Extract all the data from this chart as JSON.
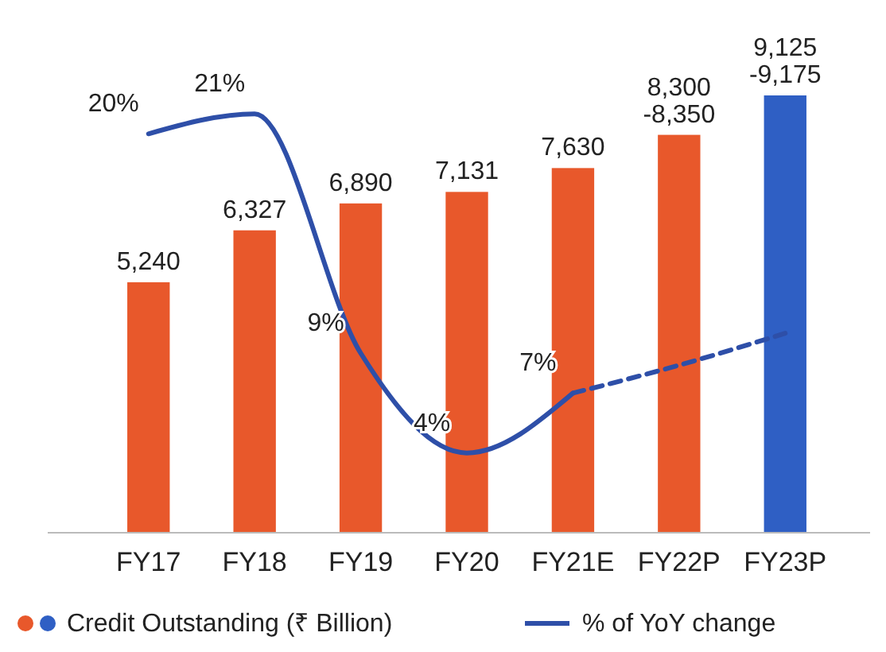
{
  "chart_data": {
    "type": "bar",
    "categories": [
      "FY17",
      "FY18",
      "FY19",
      "FY20",
      "FY21E",
      "FY22P",
      "FY23P"
    ],
    "series": [
      {
        "name": "Credit Outstanding (₹ Billion)",
        "colors": [
          "#e8582b",
          "#e8582b",
          "#e8582b",
          "#e8582b",
          "#e8582b",
          "#e8582b",
          "#2f5fc4"
        ],
        "values": [
          5240,
          6327,
          6890,
          7131,
          7630,
          8325,
          9150
        ],
        "value_labels": [
          "5,240",
          "6,327",
          "6,890",
          "7,131",
          "7,630",
          "8,300-8,350",
          "9,125-9,175"
        ]
      },
      {
        "name": "% of YoY change",
        "type": "line",
        "axis": "y2",
        "color": "#2e4fa8",
        "line_style": "solid",
        "values": [
          20,
          21,
          9,
          4,
          7,
          null,
          null
        ],
        "value_labels": [
          "20%",
          "21%",
          "9%",
          "4%",
          "7%",
          null,
          null
        ]
      },
      {
        "type": "line",
        "axis": "y2",
        "color": "#2e4fa8",
        "line_style": "dashed",
        "values": [
          null,
          null,
          null,
          null,
          7,
          8.4,
          10
        ]
      }
    ],
    "tick_labels": "x",
    "legend": "bottom"
  }
}
